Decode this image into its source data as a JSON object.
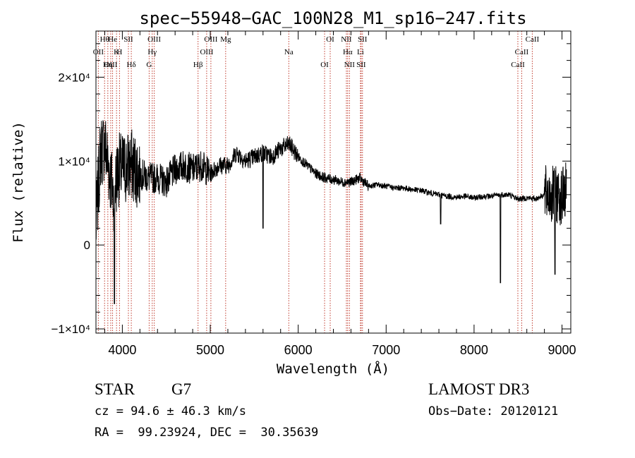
{
  "chart_data": {
    "type": "line",
    "title": "spec−55948−GAC_100N28_M1_sp16−247.fits",
    "xlabel": "Wavelength (Å)",
    "ylabel": "Flux (relative)",
    "xlim": [
      3700,
      9100
    ],
    "ylim": [
      -10500,
      25500
    ],
    "xticks": [
      4000,
      5000,
      6000,
      7000,
      8000,
      9000
    ],
    "xtick_labels": [
      "4000",
      "5000",
      "6000",
      "7000",
      "8000",
      "9000"
    ],
    "yticks": [
      -10000,
      0,
      10000,
      20000
    ],
    "ytick_labels": [
      "−1×10⁴",
      "0",
      "1×10⁴",
      "2×10⁴"
    ],
    "series": [
      {
        "name": "flux",
        "x": [
          3700,
          3750,
          3800,
          3850,
          3900,
          3950,
          4000,
          4100,
          4200,
          4300,
          4400,
          4500,
          4600,
          4700,
          4800,
          4900,
          5000,
          5100,
          5200,
          5300,
          5400,
          5500,
          5600,
          5700,
          5800,
          5900,
          6000,
          6100,
          6200,
          6300,
          6400,
          6500,
          6600,
          6700,
          6800,
          6900,
          7000,
          7100,
          7200,
          7300,
          7400,
          7500,
          7600,
          7700,
          7800,
          7900,
          8000,
          8100,
          8200,
          8300,
          8400,
          8500,
          8600,
          8700,
          8800,
          8900,
          9000,
          9050
        ],
        "y": [
          2000,
          11000,
          12000,
          9000,
          6000,
          9000,
          9000,
          9500,
          8500,
          8000,
          8000,
          7500,
          9000,
          9500,
          9000,
          9500,
          8500,
          9500,
          9500,
          11000,
          10000,
          10500,
          11000,
          10500,
          11500,
          12000,
          10500,
          9500,
          8500,
          8000,
          7800,
          7500,
          7500,
          8000,
          7000,
          7200,
          7000,
          6800,
          6800,
          6600,
          6500,
          6200,
          6000,
          5800,
          5700,
          5800,
          5600,
          5800,
          5800,
          6000,
          6000,
          5500,
          5600,
          5500,
          6000,
          6000,
          5800,
          6500
        ]
      }
    ],
    "lines": [
      {
        "label": "Hθ",
        "x": 3798
      },
      {
        "label": "OII",
        "x": 3727
      },
      {
        "label": "OIII",
        "x": 3868
      },
      {
        "label": "He",
        "x": 3889
      },
      {
        "label": "K",
        "x": 3934
      },
      {
        "label": "Hη",
        "x": 3835
      },
      {
        "label": "SII",
        "x": 4069
      },
      {
        "label": "H",
        "x": 3968
      },
      {
        "label": "Hδ",
        "x": 4102
      },
      {
        "label": "OIII",
        "x": 4363
      },
      {
        "label": "Hγ",
        "x": 4340
      },
      {
        "label": "G",
        "x": 4305
      },
      {
        "label": "OIII",
        "x": 5007
      },
      {
        "label": "OIII",
        "x": 4959
      },
      {
        "label": "Hβ",
        "x": 4861
      },
      {
        "label": "Mg",
        "x": 5175
      },
      {
        "label": "Na",
        "x": 5893
      },
      {
        "label": "OI",
        "x": 6300
      },
      {
        "label": "OI",
        "x": 6364
      },
      {
        "label": "Hα",
        "x": 6563
      },
      {
        "label": "SII",
        "x": 6716
      },
      {
        "label": "NII",
        "x": 6548
      },
      {
        "label": "Li",
        "x": 6708
      },
      {
        "label": "NII",
        "x": 6583
      },
      {
        "label": "SII",
        "x": 6731
      },
      {
        "label": "CaII",
        "x": 8542
      },
      {
        "label": "CaII",
        "x": 8498
      },
      {
        "label": "CaII",
        "x": 8662
      }
    ]
  },
  "info": {
    "object_class": "STAR",
    "subclass": "G7",
    "cz": "cz = 94.6 ± 46.3 km/s",
    "radec": "RA =  99.23924, DEC =  30.35639",
    "survey": "LAMOST DR3",
    "obs_date": "Obs−Date: 20120121"
  }
}
